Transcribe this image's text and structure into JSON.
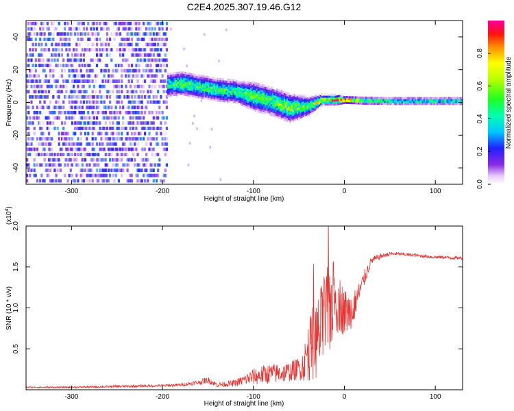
{
  "title": "C2E4.2025.307.19.46.G12",
  "colors": {
    "snr_line": "#e8322f",
    "axis": "#000000",
    "background": "#ffffff"
  },
  "chart_data": [
    {
      "type": "heatmap",
      "title": "C2E4.2025.307.19.46.G12",
      "xlabel": "Height of straight line (km)",
      "ylabel": "Frequency (Hz)",
      "xlim": [
        -350,
        130
      ],
      "ylim": [
        -50,
        50
      ],
      "xticks": [
        -300,
        -200,
        -100,
        0,
        100
      ],
      "xtick_labels": [
        "-300",
        "-200",
        "-100",
        "0",
        "100"
      ],
      "yticks": [
        -40,
        -20,
        0,
        20,
        40
      ],
      "ytick_labels": [
        "-40",
        "-20",
        "0",
        "20",
        "40"
      ],
      "colorbar": {
        "label": "Normalized spectral amplitude",
        "range": [
          0,
          1
        ],
        "ticks": [
          0,
          0.2,
          0.4,
          0.6,
          0.8
        ],
        "tick_labels": [
          "0.0",
          "0.2",
          "0.4",
          "0.6",
          "0.8"
        ],
        "colormap": "rainbow (white-violet-blue-cyan-green-yellow-orange-red-magenta)"
      },
      "ridge": {
        "description": "dominant frequency band vs height",
        "x": [
          -195,
          -180,
          -160,
          -140,
          -120,
          -100,
          -80,
          -60,
          -40,
          -25,
          -10,
          0,
          20,
          50,
          80,
          110,
          130
        ],
        "frequency_center": [
          10,
          11,
          9,
          7,
          6,
          3,
          0,
          -4,
          -3,
          1,
          1,
          1,
          0.5,
          0.3,
          0.3,
          0.3,
          0.3
        ],
        "half_width": [
          5,
          5,
          5,
          5,
          5,
          6,
          6,
          6,
          4,
          2,
          2,
          1.5,
          1.5,
          1.5,
          1.5,
          1.5,
          1.5
        ],
        "peak_amplitude": [
          0.45,
          0.55,
          0.5,
          0.5,
          0.45,
          0.55,
          0.5,
          0.6,
          0.5,
          0.75,
          0.95,
          0.9,
          0.6,
          0.45,
          0.45,
          0.45,
          0.45
        ]
      },
      "noise_region": {
        "x_range": [
          -350,
          -195
        ],
        "frequency_range": [
          -50,
          50
        ],
        "typical_amplitude": 0.15
      }
    },
    {
      "type": "line",
      "xlabel": "Height of straight line (km)",
      "ylabel": "SNR (10 * v/v)",
      "ylabel_scale": "(x10",
      "ylabel_scale_exponent": "4",
      "ylabel_scale_close": ")",
      "xlim": [
        -350,
        130
      ],
      "ylim": [
        0,
        2.0
      ],
      "xticks": [
        -300,
        -200,
        -100,
        0,
        100
      ],
      "xtick_labels": [
        "-300",
        "-200",
        "-100",
        "0",
        "100"
      ],
      "yticks": [
        0.5,
        1.0,
        1.5,
        2.0
      ],
      "ytick_labels": [
        "0.5",
        "1.0",
        "1.5",
        "2.0"
      ],
      "series": [
        {
          "name": "SNR",
          "x": [
            -350,
            -300,
            -250,
            -200,
            -180,
            -160,
            -150,
            -140,
            -120,
            -110,
            -100,
            -90,
            -80,
            -70,
            -60,
            -50,
            -45,
            -40,
            -35,
            -30,
            -25,
            -20,
            -15,
            -10,
            -5,
            0,
            5,
            10,
            15,
            20,
            25,
            30,
            40,
            50,
            60,
            70,
            80,
            90,
            100,
            110,
            120,
            130
          ],
          "values": [
            0.03,
            0.03,
            0.04,
            0.05,
            0.06,
            0.09,
            0.12,
            0.06,
            0.08,
            0.12,
            0.16,
            0.18,
            0.2,
            0.2,
            0.22,
            0.26,
            0.3,
            0.45,
            0.55,
            0.62,
            0.75,
            0.9,
            1.05,
            1.1,
            1.05,
            0.95,
            0.95,
            1.0,
            1.15,
            1.3,
            1.45,
            1.58,
            1.63,
            1.66,
            1.66,
            1.65,
            1.64,
            1.63,
            1.62,
            1.62,
            1.61,
            1.61
          ],
          "noise_amplitude": [
            0.01,
            0.01,
            0.015,
            0.015,
            0.02,
            0.03,
            0.04,
            0.03,
            0.04,
            0.07,
            0.1,
            0.12,
            0.12,
            0.12,
            0.12,
            0.14,
            0.2,
            0.35,
            0.45,
            0.5,
            0.55,
            0.55,
            0.6,
            0.45,
            0.35,
            0.3,
            0.25,
            0.2,
            0.15,
            0.12,
            0.08,
            0.05,
            0.03,
            0.025,
            0.02,
            0.02,
            0.02,
            0.02,
            0.02,
            0.02,
            0.02,
            0.02
          ]
        }
      ]
    }
  ]
}
